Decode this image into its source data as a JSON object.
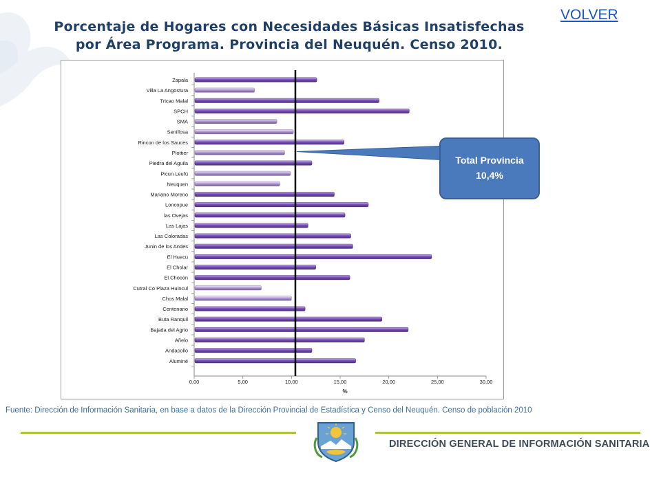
{
  "nav": {
    "volver_label": "VOLVER"
  },
  "header": {
    "title_line1": "Porcentaje de Hogares con Necesidades Básicas Insatisfechas",
    "title_line2": "por Área Programa. Provincia del Neuquén. Censo 2010."
  },
  "callout": {
    "line1": "Total Provincia",
    "line2": "10,4%"
  },
  "footer": {
    "source": "Fuente: Dirección de Información Sanitaria, en base a datos de la Dirección Provincial de Estadística y Censo del Neuquén. Censo de población 2010",
    "org_name": "DIRECCIÓN GENERAL DE INFORMACIÓN SANITARIA"
  },
  "colors": {
    "bar_above": "#7a4fb8",
    "bar_below": "#b49bd6",
    "reference_line": "#000000",
    "callout_fill": "#4a7abc",
    "rule_green": "#a9c63a"
  },
  "chart_data": {
    "type": "bar",
    "orientation": "horizontal",
    "title": "Porcentaje de Hogares con Necesidades Básicas Insatisfechas por Área Programa. Provincia del Neuquén. Censo 2010.",
    "xlabel": "%",
    "ylabel": "",
    "xlim": [
      0,
      30
    ],
    "x_ticks": [
      "0,00",
      "5,00",
      "10,00",
      "15,00",
      "20,00",
      "25,00",
      "30,00"
    ],
    "reference_value": 10.4,
    "reference_label": "Total Provincia 10,4%",
    "categories": [
      "Zapala",
      "Villa La Angostura",
      "Tricao Malal",
      "SPCH",
      "SMA",
      "Senillosa",
      "Rincon de los Sauces",
      "Plottier",
      "Piedra del Aguila",
      "Picun Leufú",
      "Neuquen",
      "Mariano Moreno",
      "Loncopue",
      "las Ovejas",
      "Las Lajas",
      "Las Coloradas",
      "Junin de los Andes",
      "El Huecu",
      "El Cholar",
      "El Chocon",
      "Cutral Co Plaza Huincul",
      "Chos Malal",
      "Centenario",
      "Buta Ranquil",
      "Bajada del Agrio",
      "Añelo",
      "Andacollo",
      "Aluminé"
    ],
    "values": [
      12.6,
      6.2,
      19.0,
      22.1,
      8.5,
      10.2,
      15.4,
      9.3,
      12.1,
      9.9,
      8.8,
      14.4,
      17.9,
      15.5,
      11.7,
      16.1,
      16.3,
      24.4,
      12.5,
      16.0,
      6.9,
      10.0,
      11.4,
      19.3,
      22.0,
      17.5,
      12.1,
      16.6
    ]
  }
}
